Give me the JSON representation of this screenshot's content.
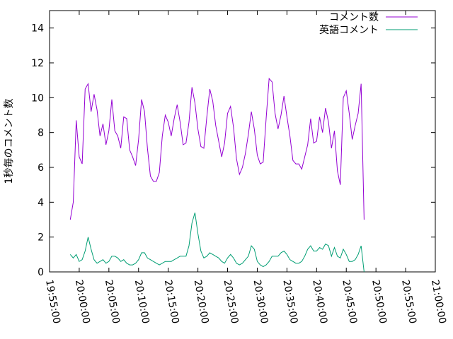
{
  "chart_data": {
    "type": "line",
    "title": "",
    "xlabel": "",
    "ylabel": "1秒毎のコメント数",
    "xlim": [
      "19:55:00",
      "21:00:00"
    ],
    "ylim": [
      0,
      15
    ],
    "grid": false,
    "legend_position": "top-right",
    "x_tick_labels": [
      "19:55:00",
      "20:00:00",
      "20:05:00",
      "20:10:00",
      "20:15:00",
      "20:20:00",
      "20:25:00",
      "20:30:00",
      "20:35:00",
      "20:40:00",
      "20:45:00",
      "20:50:00",
      "20:55:00",
      "21:00:00"
    ],
    "y_ticks": [
      0,
      2,
      4,
      6,
      8,
      10,
      12,
      14
    ],
    "series": [
      {
        "name": "コメント数",
        "color": "#9400d3",
        "points": [
          [
            "19:58:30",
            3.0
          ],
          [
            "19:59:00",
            4.0
          ],
          [
            "19:59:30",
            8.7
          ],
          [
            "20:00:00",
            6.6
          ],
          [
            "20:00:30",
            6.2
          ],
          [
            "20:01:00",
            10.5
          ],
          [
            "20:01:30",
            10.8
          ],
          [
            "20:02:00",
            9.2
          ],
          [
            "20:02:30",
            10.2
          ],
          [
            "20:03:00",
            9.3
          ],
          [
            "20:03:30",
            7.8
          ],
          [
            "20:04:00",
            8.5
          ],
          [
            "20:04:30",
            7.3
          ],
          [
            "20:05:00",
            8.1
          ],
          [
            "20:05:30",
            9.9
          ],
          [
            "20:06:00",
            8.1
          ],
          [
            "20:06:30",
            7.8
          ],
          [
            "20:07:00",
            7.1
          ],
          [
            "20:07:30",
            8.9
          ],
          [
            "20:08:00",
            8.8
          ],
          [
            "20:08:30",
            7.0
          ],
          [
            "20:09:00",
            6.6
          ],
          [
            "20:09:30",
            6.1
          ],
          [
            "20:10:00",
            7.6
          ],
          [
            "20:10:30",
            9.9
          ],
          [
            "20:11:00",
            9.2
          ],
          [
            "20:11:30",
            7.1
          ],
          [
            "20:12:00",
            5.5
          ],
          [
            "20:12:30",
            5.2
          ],
          [
            "20:13:00",
            5.2
          ],
          [
            "20:13:30",
            5.7
          ],
          [
            "20:14:00",
            7.8
          ],
          [
            "20:14:30",
            9.0
          ],
          [
            "20:15:00",
            8.6
          ],
          [
            "20:15:30",
            7.8
          ],
          [
            "20:16:00",
            8.8
          ],
          [
            "20:16:30",
            9.6
          ],
          [
            "20:17:00",
            8.6
          ],
          [
            "20:17:30",
            7.3
          ],
          [
            "20:18:00",
            7.4
          ],
          [
            "20:18:30",
            8.6
          ],
          [
            "20:19:00",
            10.6
          ],
          [
            "20:19:30",
            9.7
          ],
          [
            "20:20:00",
            8.2
          ],
          [
            "20:20:30",
            7.2
          ],
          [
            "20:21:00",
            7.1
          ],
          [
            "20:21:30",
            8.9
          ],
          [
            "20:22:00",
            10.5
          ],
          [
            "20:22:30",
            9.8
          ],
          [
            "20:23:00",
            8.4
          ],
          [
            "20:23:30",
            7.5
          ],
          [
            "20:24:00",
            6.6
          ],
          [
            "20:24:30",
            7.4
          ],
          [
            "20:25:00",
            9.1
          ],
          [
            "20:25:30",
            9.5
          ],
          [
            "20:26:00",
            8.3
          ],
          [
            "20:26:30",
            6.5
          ],
          [
            "20:27:00",
            5.6
          ],
          [
            "20:27:30",
            6.0
          ],
          [
            "20:28:00",
            6.8
          ],
          [
            "20:28:30",
            7.9
          ],
          [
            "20:29:00",
            9.2
          ],
          [
            "20:29:30",
            8.2
          ],
          [
            "20:30:00",
            6.7
          ],
          [
            "20:30:30",
            6.2
          ],
          [
            "20:31:00",
            6.3
          ],
          [
            "20:31:30",
            8.8
          ],
          [
            "20:32:00",
            11.1
          ],
          [
            "20:32:30",
            10.9
          ],
          [
            "20:33:00",
            9.1
          ],
          [
            "20:33:30",
            8.2
          ],
          [
            "20:34:00",
            9.0
          ],
          [
            "20:34:30",
            10.1
          ],
          [
            "20:35:00",
            8.9
          ],
          [
            "20:35:30",
            7.8
          ],
          [
            "20:36:00",
            6.4
          ],
          [
            "20:36:30",
            6.2
          ],
          [
            "20:37:00",
            6.2
          ],
          [
            "20:37:30",
            5.9
          ],
          [
            "20:38:00",
            6.6
          ],
          [
            "20:38:30",
            7.3
          ],
          [
            "20:39:00",
            8.8
          ],
          [
            "20:39:30",
            7.4
          ],
          [
            "20:40:00",
            7.5
          ],
          [
            "20:40:30",
            8.9
          ],
          [
            "20:41:00",
            8.0
          ],
          [
            "20:41:30",
            9.4
          ],
          [
            "20:42:00",
            8.6
          ],
          [
            "20:42:30",
            7.1
          ],
          [
            "20:43:00",
            8.1
          ],
          [
            "20:43:30",
            5.8
          ],
          [
            "20:44:00",
            5.0
          ],
          [
            "20:44:30",
            10.0
          ],
          [
            "20:45:00",
            10.4
          ],
          [
            "20:45:30",
            9.1
          ],
          [
            "20:46:00",
            7.6
          ],
          [
            "20:46:30",
            8.4
          ],
          [
            "20:47:00",
            9.1
          ],
          [
            "20:47:30",
            10.8
          ],
          [
            "20:48:00",
            3.0
          ]
        ]
      },
      {
        "name": "英語コメント",
        "color": "#009e73",
        "points": [
          [
            "19:58:30",
            1.0
          ],
          [
            "19:59:00",
            0.8
          ],
          [
            "19:59:30",
            1.0
          ],
          [
            "20:00:00",
            0.6
          ],
          [
            "20:00:30",
            0.7
          ],
          [
            "20:01:00",
            1.2
          ],
          [
            "20:01:30",
            2.0
          ],
          [
            "20:02:00",
            1.3
          ],
          [
            "20:02:30",
            0.7
          ],
          [
            "20:03:00",
            0.5
          ],
          [
            "20:03:30",
            0.6
          ],
          [
            "20:04:00",
            0.7
          ],
          [
            "20:04:30",
            0.5
          ],
          [
            "20:05:00",
            0.6
          ],
          [
            "20:05:30",
            0.9
          ],
          [
            "20:06:00",
            0.9
          ],
          [
            "20:06:30",
            0.8
          ],
          [
            "20:07:00",
            0.6
          ],
          [
            "20:07:30",
            0.7
          ],
          [
            "20:08:00",
            0.5
          ],
          [
            "20:08:30",
            0.4
          ],
          [
            "20:09:00",
            0.4
          ],
          [
            "20:09:30",
            0.5
          ],
          [
            "20:10:00",
            0.7
          ],
          [
            "20:10:30",
            1.1
          ],
          [
            "20:11:00",
            1.1
          ],
          [
            "20:11:30",
            0.8
          ],
          [
            "20:12:00",
            0.7
          ],
          [
            "20:12:30",
            0.6
          ],
          [
            "20:13:00",
            0.5
          ],
          [
            "20:13:30",
            0.4
          ],
          [
            "20:14:00",
            0.5
          ],
          [
            "20:14:30",
            0.6
          ],
          [
            "20:15:00",
            0.6
          ],
          [
            "20:15:30",
            0.6
          ],
          [
            "20:16:00",
            0.7
          ],
          [
            "20:16:30",
            0.8
          ],
          [
            "20:17:00",
            0.9
          ],
          [
            "20:17:30",
            0.9
          ],
          [
            "20:18:00",
            0.9
          ],
          [
            "20:18:30",
            1.5
          ],
          [
            "20:19:00",
            2.8
          ],
          [
            "20:19:30",
            3.4
          ],
          [
            "20:20:00",
            2.2
          ],
          [
            "20:20:30",
            1.2
          ],
          [
            "20:21:00",
            0.8
          ],
          [
            "20:21:30",
            0.9
          ],
          [
            "20:22:00",
            1.1
          ],
          [
            "20:22:30",
            1.0
          ],
          [
            "20:23:00",
            0.9
          ],
          [
            "20:23:30",
            0.8
          ],
          [
            "20:24:00",
            0.6
          ],
          [
            "20:24:30",
            0.5
          ],
          [
            "20:25:00",
            0.8
          ],
          [
            "20:25:30",
            1.0
          ],
          [
            "20:26:00",
            0.8
          ],
          [
            "20:26:30",
            0.5
          ],
          [
            "20:27:00",
            0.4
          ],
          [
            "20:27:30",
            0.5
          ],
          [
            "20:28:00",
            0.7
          ],
          [
            "20:28:30",
            0.9
          ],
          [
            "20:29:00",
            1.5
          ],
          [
            "20:29:30",
            1.3
          ],
          [
            "20:30:00",
            0.6
          ],
          [
            "20:30:30",
            0.4
          ],
          [
            "20:31:00",
            0.3
          ],
          [
            "20:31:30",
            0.4
          ],
          [
            "20:32:00",
            0.6
          ],
          [
            "20:32:30",
            0.9
          ],
          [
            "20:33:00",
            0.9
          ],
          [
            "20:33:30",
            0.9
          ],
          [
            "20:34:00",
            1.1
          ],
          [
            "20:34:30",
            1.2
          ],
          [
            "20:35:00",
            1.0
          ],
          [
            "20:35:30",
            0.7
          ],
          [
            "20:36:00",
            0.6
          ],
          [
            "20:36:30",
            0.5
          ],
          [
            "20:37:00",
            0.5
          ],
          [
            "20:37:30",
            0.6
          ],
          [
            "20:38:00",
            0.9
          ],
          [
            "20:38:30",
            1.3
          ],
          [
            "20:39:00",
            1.5
          ],
          [
            "20:39:30",
            1.2
          ],
          [
            "20:40:00",
            1.2
          ],
          [
            "20:40:30",
            1.4
          ],
          [
            "20:41:00",
            1.3
          ],
          [
            "20:41:30",
            1.6
          ],
          [
            "20:42:00",
            1.5
          ],
          [
            "20:42:30",
            0.9
          ],
          [
            "20:43:00",
            1.4
          ],
          [
            "20:43:30",
            0.9
          ],
          [
            "20:44:00",
            0.8
          ],
          [
            "20:44:30",
            1.3
          ],
          [
            "20:45:00",
            1.0
          ],
          [
            "20:45:30",
            0.6
          ],
          [
            "20:46:00",
            0.6
          ],
          [
            "20:46:30",
            0.7
          ],
          [
            "20:47:00",
            1.0
          ],
          [
            "20:47:30",
            1.5
          ],
          [
            "20:48:00",
            0.0
          ]
        ]
      }
    ]
  }
}
